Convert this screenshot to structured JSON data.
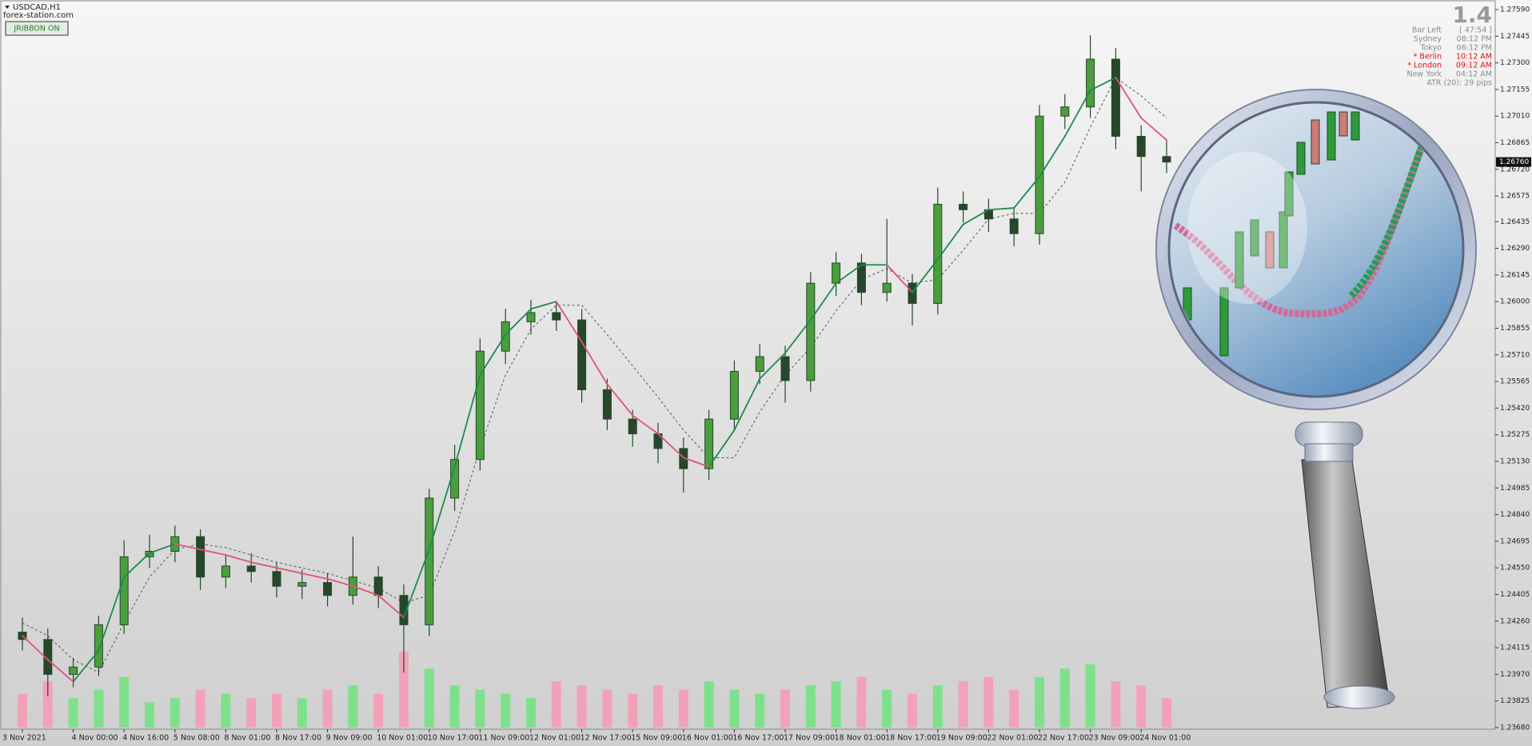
{
  "window": {
    "symbol": "USDCAD,H1",
    "site": "forex-station.com",
    "button": "JRIBBON ON"
  },
  "clock_panel": {
    "version": "1.4",
    "bar_left_label": "Bar Left",
    "bar_left": "[ 47:54 ]",
    "rows": [
      [
        "Sydney",
        "08:12 PM"
      ],
      [
        "Tokyo",
        "06:12 PM"
      ],
      [
        "* Berlin",
        "10:12 AM"
      ],
      [
        "* London",
        "09:12 AM"
      ],
      [
        "New York",
        "04:12 AM"
      ]
    ],
    "active_color": "#e01010",
    "atr": "ATR (20): 29 pips"
  },
  "chart_data": {
    "type": "candlestick",
    "categories": [
      "3 Nov 2021",
      null,
      "4 Nov 00:00",
      null,
      "4 Nov 16:00",
      null,
      "5 Nov 08:00",
      null,
      "8 Nov 01:00",
      null,
      "8 Nov 17:00",
      null,
      "9 Nov 09:00",
      null,
      "10 Nov 01:00",
      null,
      "10 Nov 17:00",
      null,
      "11 Nov 09:00",
      null,
      "12 Nov 01:00",
      null,
      "12 Nov 17:00",
      null,
      "15 Nov 09:00",
      null,
      "16 Nov 01:00",
      null,
      "16 Nov 17:00",
      null,
      "17 Nov 09:00",
      null,
      "18 Nov 01:00",
      null,
      "18 Nov 17:00",
      null,
      "19 Nov 09:00",
      null,
      "22 Nov 01:00",
      null,
      "22 Nov 17:00",
      null,
      "23 Nov 09:00",
      null,
      "24 Nov 01:00",
      null
    ],
    "open": [
      1.242,
      1.2416,
      1.2397,
      1.2401,
      1.2424,
      1.2461,
      1.2464,
      1.2472,
      1.245,
      1.2456,
      1.2453,
      1.2445,
      1.2447,
      1.244,
      1.245,
      1.244,
      1.2424,
      1.2493,
      1.2514,
      1.2573,
      1.2589,
      1.2594,
      1.259,
      1.2552,
      1.2536,
      1.2528,
      1.252,
      1.2509,
      1.2536,
      1.2562,
      1.257,
      1.2557,
      1.261,
      1.2621,
      1.2605,
      1.261,
      1.2599,
      1.2653,
      1.265,
      1.2645,
      1.2637,
      1.2701,
      1.2706,
      1.2732,
      1.269,
      1.2679
    ],
    "high": [
      1.2428,
      1.2422,
      1.2406,
      1.2429,
      1.247,
      1.2473,
      1.2478,
      1.2476,
      1.2462,
      1.2463,
      1.2458,
      1.2454,
      1.2452,
      1.2472,
      1.2456,
      1.2446,
      1.2498,
      1.2522,
      1.258,
      1.2596,
      1.2601,
      1.26,
      1.2596,
      1.2558,
      1.2541,
      1.2534,
      1.2526,
      1.2541,
      1.2568,
      1.2577,
      1.2576,
      1.2616,
      1.2627,
      1.2626,
      1.2645,
      1.2615,
      1.2662,
      1.266,
      1.2656,
      1.2651,
      1.2707,
      1.2713,
      1.2745,
      1.2738,
      1.2696,
      1.2688
    ],
    "low": [
      1.241,
      1.2385,
      1.239,
      1.2396,
      1.2419,
      1.2455,
      1.2458,
      1.2443,
      1.2444,
      1.2447,
      1.2439,
      1.2438,
      1.2434,
      1.2435,
      1.2433,
      1.2398,
      1.2418,
      1.2486,
      1.2508,
      1.2566,
      1.2582,
      1.2584,
      1.2545,
      1.253,
      1.2521,
      1.2512,
      1.2496,
      1.2503,
      1.253,
      1.2555,
      1.2545,
      1.2551,
      1.2603,
      1.2598,
      1.26,
      1.2587,
      1.2593,
      1.2643,
      1.2638,
      1.263,
      1.2631,
      1.2694,
      1.27,
      1.2683,
      1.266,
      1.267
    ],
    "close": [
      1.2416,
      1.2397,
      1.2401,
      1.2424,
      1.2461,
      1.2464,
      1.2472,
      1.245,
      1.2456,
      1.2453,
      1.2445,
      1.2447,
      1.244,
      1.245,
      1.244,
      1.2424,
      1.2493,
      1.2514,
      1.2573,
      1.2589,
      1.2594,
      1.259,
      1.2552,
      1.2536,
      1.2528,
      1.252,
      1.2509,
      1.2536,
      1.2562,
      1.257,
      1.2557,
      1.261,
      1.2621,
      1.2605,
      1.261,
      1.2599,
      1.2653,
      1.265,
      1.2645,
      1.2637,
      1.2701,
      1.2706,
      1.2732,
      1.269,
      1.2679,
      1.2676
    ],
    "up_color": "#4a9e3c",
    "down_color": "#26472a",
    "ma_fast": {
      "values": [
        1.2418,
        1.2405,
        1.2393,
        1.241,
        1.245,
        1.2463,
        1.2468,
        1.2465,
        1.2462,
        1.2458,
        1.2455,
        1.2452,
        1.2449,
        1.2445,
        1.244,
        1.2428,
        1.2465,
        1.251,
        1.256,
        1.2582,
        1.2596,
        1.26,
        1.2578,
        1.2555,
        1.2538,
        1.2528,
        1.2515,
        1.251,
        1.253,
        1.2558,
        1.2572,
        1.259,
        1.261,
        1.262,
        1.262,
        1.2605,
        1.2623,
        1.2642,
        1.265,
        1.2651,
        1.2668,
        1.269,
        1.2715,
        1.2722,
        1.27,
        1.2688
      ],
      "up_color": "#1e8a4e",
      "down_color": "#e0527a"
    },
    "ma_slow": {
      "values": [
        1.2425,
        1.2418,
        1.2405,
        1.2398,
        1.2425,
        1.245,
        1.2465,
        1.2468,
        1.2466,
        1.2462,
        1.2458,
        1.2455,
        1.2452,
        1.2448,
        1.2444,
        1.2436,
        1.244,
        1.2475,
        1.252,
        1.256,
        1.2585,
        1.2598,
        1.2598,
        1.2582,
        1.2565,
        1.2548,
        1.253,
        1.2515,
        1.2515,
        1.254,
        1.256,
        1.2575,
        1.2595,
        1.2612,
        1.2618,
        1.261,
        1.2612,
        1.2628,
        1.2645,
        1.2648,
        1.2648,
        1.2665,
        1.2695,
        1.2722,
        1.2712,
        1.27
      ],
      "color": "#555555",
      "dashed": true
    },
    "volume": {
      "values": [
        40,
        55,
        35,
        45,
        60,
        30,
        35,
        45,
        40,
        35,
        40,
        35,
        45,
        50,
        40,
        90,
        70,
        50,
        45,
        40,
        35,
        55,
        50,
        45,
        40,
        50,
        45,
        55,
        45,
        40,
        45,
        50,
        55,
        60,
        45,
        40,
        50,
        55,
        60,
        45,
        60,
        70,
        75,
        55,
        50,
        35
      ],
      "up_color": "#7fe08c",
      "down_color": "#f2a2b8"
    },
    "ylim": [
      1.2368,
      1.2759
    ],
    "yticks": [
      {
        "value": 1.2759,
        "label": "1.27590"
      },
      {
        "value": 1.27445,
        "label": "1.27445"
      },
      {
        "value": 1.273,
        "label": "1.27300"
      },
      {
        "value": 1.27155,
        "label": "1.27155"
      },
      {
        "value": 1.2701,
        "label": "1.27010"
      },
      {
        "value": 1.26865,
        "label": "1.26865"
      },
      {
        "value": 1.2672,
        "label": "1.26720"
      },
      {
        "value": 1.26575,
        "label": "1.26575"
      },
      {
        "value": 1.26435,
        "label": "1.26435"
      },
      {
        "value": 1.2629,
        "label": "1.26290"
      },
      {
        "value": 1.26145,
        "label": "1.26145"
      },
      {
        "value": 1.26,
        "label": "1.26000"
      },
      {
        "value": 1.25855,
        "label": "1.25855"
      },
      {
        "value": 1.2571,
        "label": "1.25710"
      },
      {
        "value": 1.25565,
        "label": "1.25565"
      },
      {
        "value": 1.2542,
        "label": "1.25420"
      },
      {
        "value": 1.25275,
        "label": "1.25275"
      },
      {
        "value": 1.2513,
        "label": "1.25130"
      },
      {
        "value": 1.24985,
        "label": "1.24985"
      },
      {
        "value": 1.2484,
        "label": "1.24840"
      },
      {
        "value": 1.24695,
        "label": "1.24695"
      },
      {
        "value": 1.2455,
        "label": "1.24550"
      },
      {
        "value": 1.24405,
        "label": "1.24405"
      },
      {
        "value": 1.2426,
        "label": "1.24260"
      },
      {
        "value": 1.24115,
        "label": "1.24115"
      },
      {
        "value": 1.2397,
        "label": "1.23970"
      },
      {
        "value": 1.23825,
        "label": "1.23825"
      },
      {
        "value": 1.2368,
        "label": "1.23680"
      }
    ],
    "current_price": {
      "value": 1.2676,
      "label": "1.26760"
    }
  }
}
